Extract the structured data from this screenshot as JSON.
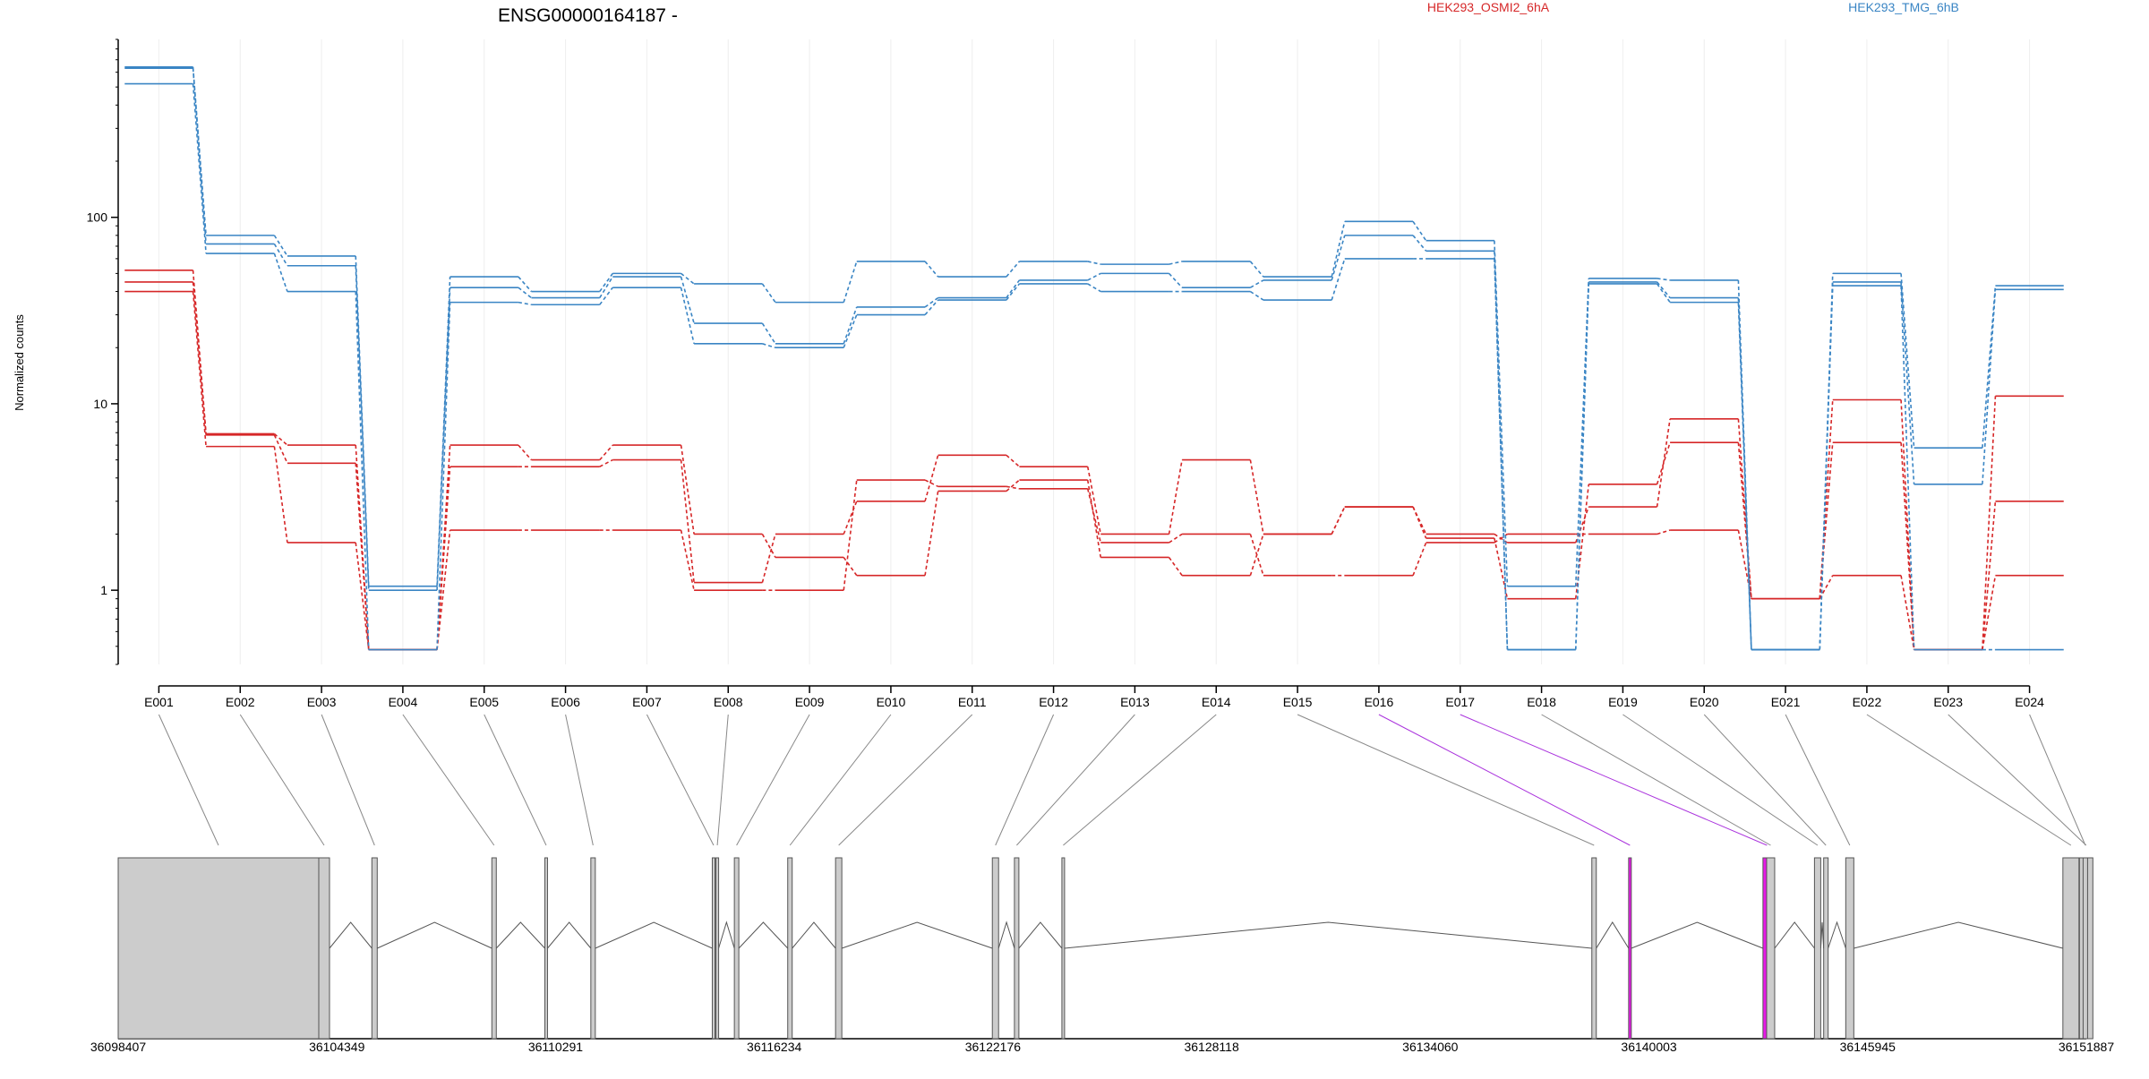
{
  "chart_data": {
    "type": "line",
    "title": "ENSG00000164187 -",
    "ylabel": "Normalized counts",
    "y_scale": "log",
    "ylim": [
      0.4,
      900
    ],
    "yticks": [
      1,
      10,
      100
    ],
    "ytick_labels": [
      "1",
      "10",
      "100"
    ],
    "categories": [
      "E001",
      "E002",
      "E003",
      "E004",
      "E005",
      "E006",
      "E007",
      "E008",
      "E009",
      "E010",
      "E011",
      "E012",
      "E013",
      "E014",
      "E015",
      "E016",
      "E017",
      "E018",
      "E019",
      "E020",
      "E021",
      "E022",
      "E023",
      "E024"
    ],
    "grid": "vertical",
    "legend": [
      {
        "name": "HEK293_OSMI2_6hA",
        "color": "#d62728",
        "placement": "top-center"
      },
      {
        "name": "HEK293_TMG_6hB",
        "color": "#3a85c4",
        "placement": "top-right"
      }
    ],
    "series": [
      {
        "group": "HEK293_OSMI2_6hA",
        "color": "#d62728",
        "values": [
          52,
          6.9,
          6.0,
          0.48,
          6.0,
          5.0,
          6.0,
          2.0,
          1.5,
          1.2,
          3.4,
          3.9,
          1.5,
          1.2,
          2.0,
          2.8,
          2.0,
          1.8,
          2.8,
          8.3,
          0.9,
          10.5,
          0.48,
          11.0
        ]
      },
      {
        "group": "HEK293_OSMI2_6hA",
        "color": "#d62728",
        "values": [
          45,
          6.8,
          4.8,
          0.48,
          4.6,
          4.6,
          5.0,
          1.1,
          2.0,
          3.0,
          5.3,
          4.6,
          2.0,
          5.0,
          2.0,
          2.8,
          1.9,
          0.9,
          3.7,
          6.2,
          0.9,
          6.2,
          0.48,
          1.2
        ]
      },
      {
        "group": "HEK293_OSMI2_6hA",
        "color": "#d62728",
        "values": [
          40,
          5.9,
          1.8,
          0.48,
          2.1,
          2.1,
          2.1,
          1.0,
          1.0,
          3.9,
          3.6,
          3.5,
          1.8,
          2.0,
          1.2,
          1.2,
          1.8,
          2.0,
          2.0,
          2.1,
          0.9,
          1.2,
          0.48,
          3.0
        ]
      },
      {
        "group": "HEK293_TMG_6hB",
        "color": "#3a85c4",
        "values": [
          640,
          80,
          62,
          1.05,
          48,
          40,
          50,
          44,
          35,
          58,
          48,
          58,
          56,
          58,
          48,
          95,
          75,
          1.05,
          47,
          46,
          0.48,
          50,
          5.8,
          43
        ]
      },
      {
        "group": "HEK293_TMG_6hB",
        "color": "#3a85c4",
        "values": [
          630,
          72,
          55,
          1.0,
          42,
          37,
          48,
          27,
          21,
          33,
          37,
          46,
          50,
          42,
          46,
          80,
          66,
          0.48,
          45,
          37,
          0.48,
          45,
          3.7,
          41
        ]
      },
      {
        "group": "HEK293_TMG_6hB",
        "color": "#3a85c4",
        "values": [
          520,
          64,
          40,
          0.48,
          35,
          34,
          42,
          21,
          20,
          30,
          36,
          44,
          40,
          40,
          36,
          60,
          60,
          0.48,
          44,
          35,
          0.48,
          43,
          0.48,
          0.48
        ]
      }
    ],
    "genomic_axis": {
      "labels": [
        "36098407",
        "36104349",
        "36110291",
        "36116234",
        "36122176",
        "36128118",
        "36134060",
        "36140003",
        "36145945",
        "36151887"
      ],
      "range": [
        36098407,
        36151887
      ]
    },
    "exon_positions": [
      36098407,
      36104130,
      36105300,
      36108560,
      36110000,
      36111250,
      36114550,
      36114650,
      36115150,
      36116600,
      36117900,
      36122160,
      36122760,
      36124050,
      36138450,
      36139450,
      36143100,
      36143200,
      36144500,
      36144750,
      36145350,
      36151250,
      36151700,
      36151800
    ],
    "highlighted_exons": [
      "E016",
      "E017"
    ],
    "highlight_color": "#e619e6",
    "exon_color": "#cccccc"
  }
}
